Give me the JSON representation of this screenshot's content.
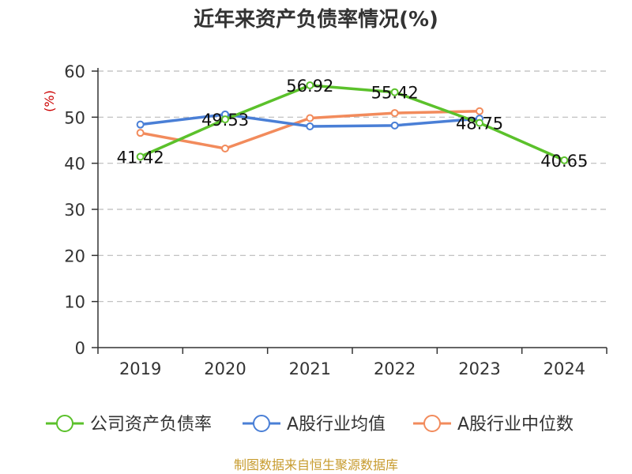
{
  "source": "制图数据来自恒生聚源数据库",
  "colors": {
    "title": "#333333",
    "ylabel": "#cc0000",
    "axis": "#333333",
    "grid": "#bbbbbb",
    "source": "#c79b2e"
  },
  "chart_data": {
    "type": "line",
    "title": "近年来资产负债率情况(%)",
    "xlabel": "",
    "ylabel": "(%)",
    "categories": [
      "2019",
      "2020",
      "2021",
      "2022",
      "2023",
      "2024"
    ],
    "ylim": [
      0,
      60
    ],
    "yticks": [
      0,
      10,
      20,
      30,
      40,
      50,
      60
    ],
    "grid": "horizontal dashed",
    "legend_position": "bottom",
    "series": [
      {
        "name": "公司资产负债率",
        "color": "#5bc12b",
        "values": [
          41.42,
          49.53,
          56.92,
          55.42,
          48.75,
          40.65
        ],
        "labels": [
          "41.42",
          "49.53",
          "56.92",
          "55.42",
          "48.75",
          "40.65"
        ]
      },
      {
        "name": "A股行业均值",
        "color": "#4a7fd6",
        "values": [
          48.4,
          50.6,
          48.0,
          48.2,
          49.7,
          null
        ]
      },
      {
        "name": "A股行业中位数",
        "color": "#f28b5c",
        "values": [
          46.6,
          43.2,
          49.8,
          50.9,
          51.3,
          null
        ]
      }
    ]
  }
}
